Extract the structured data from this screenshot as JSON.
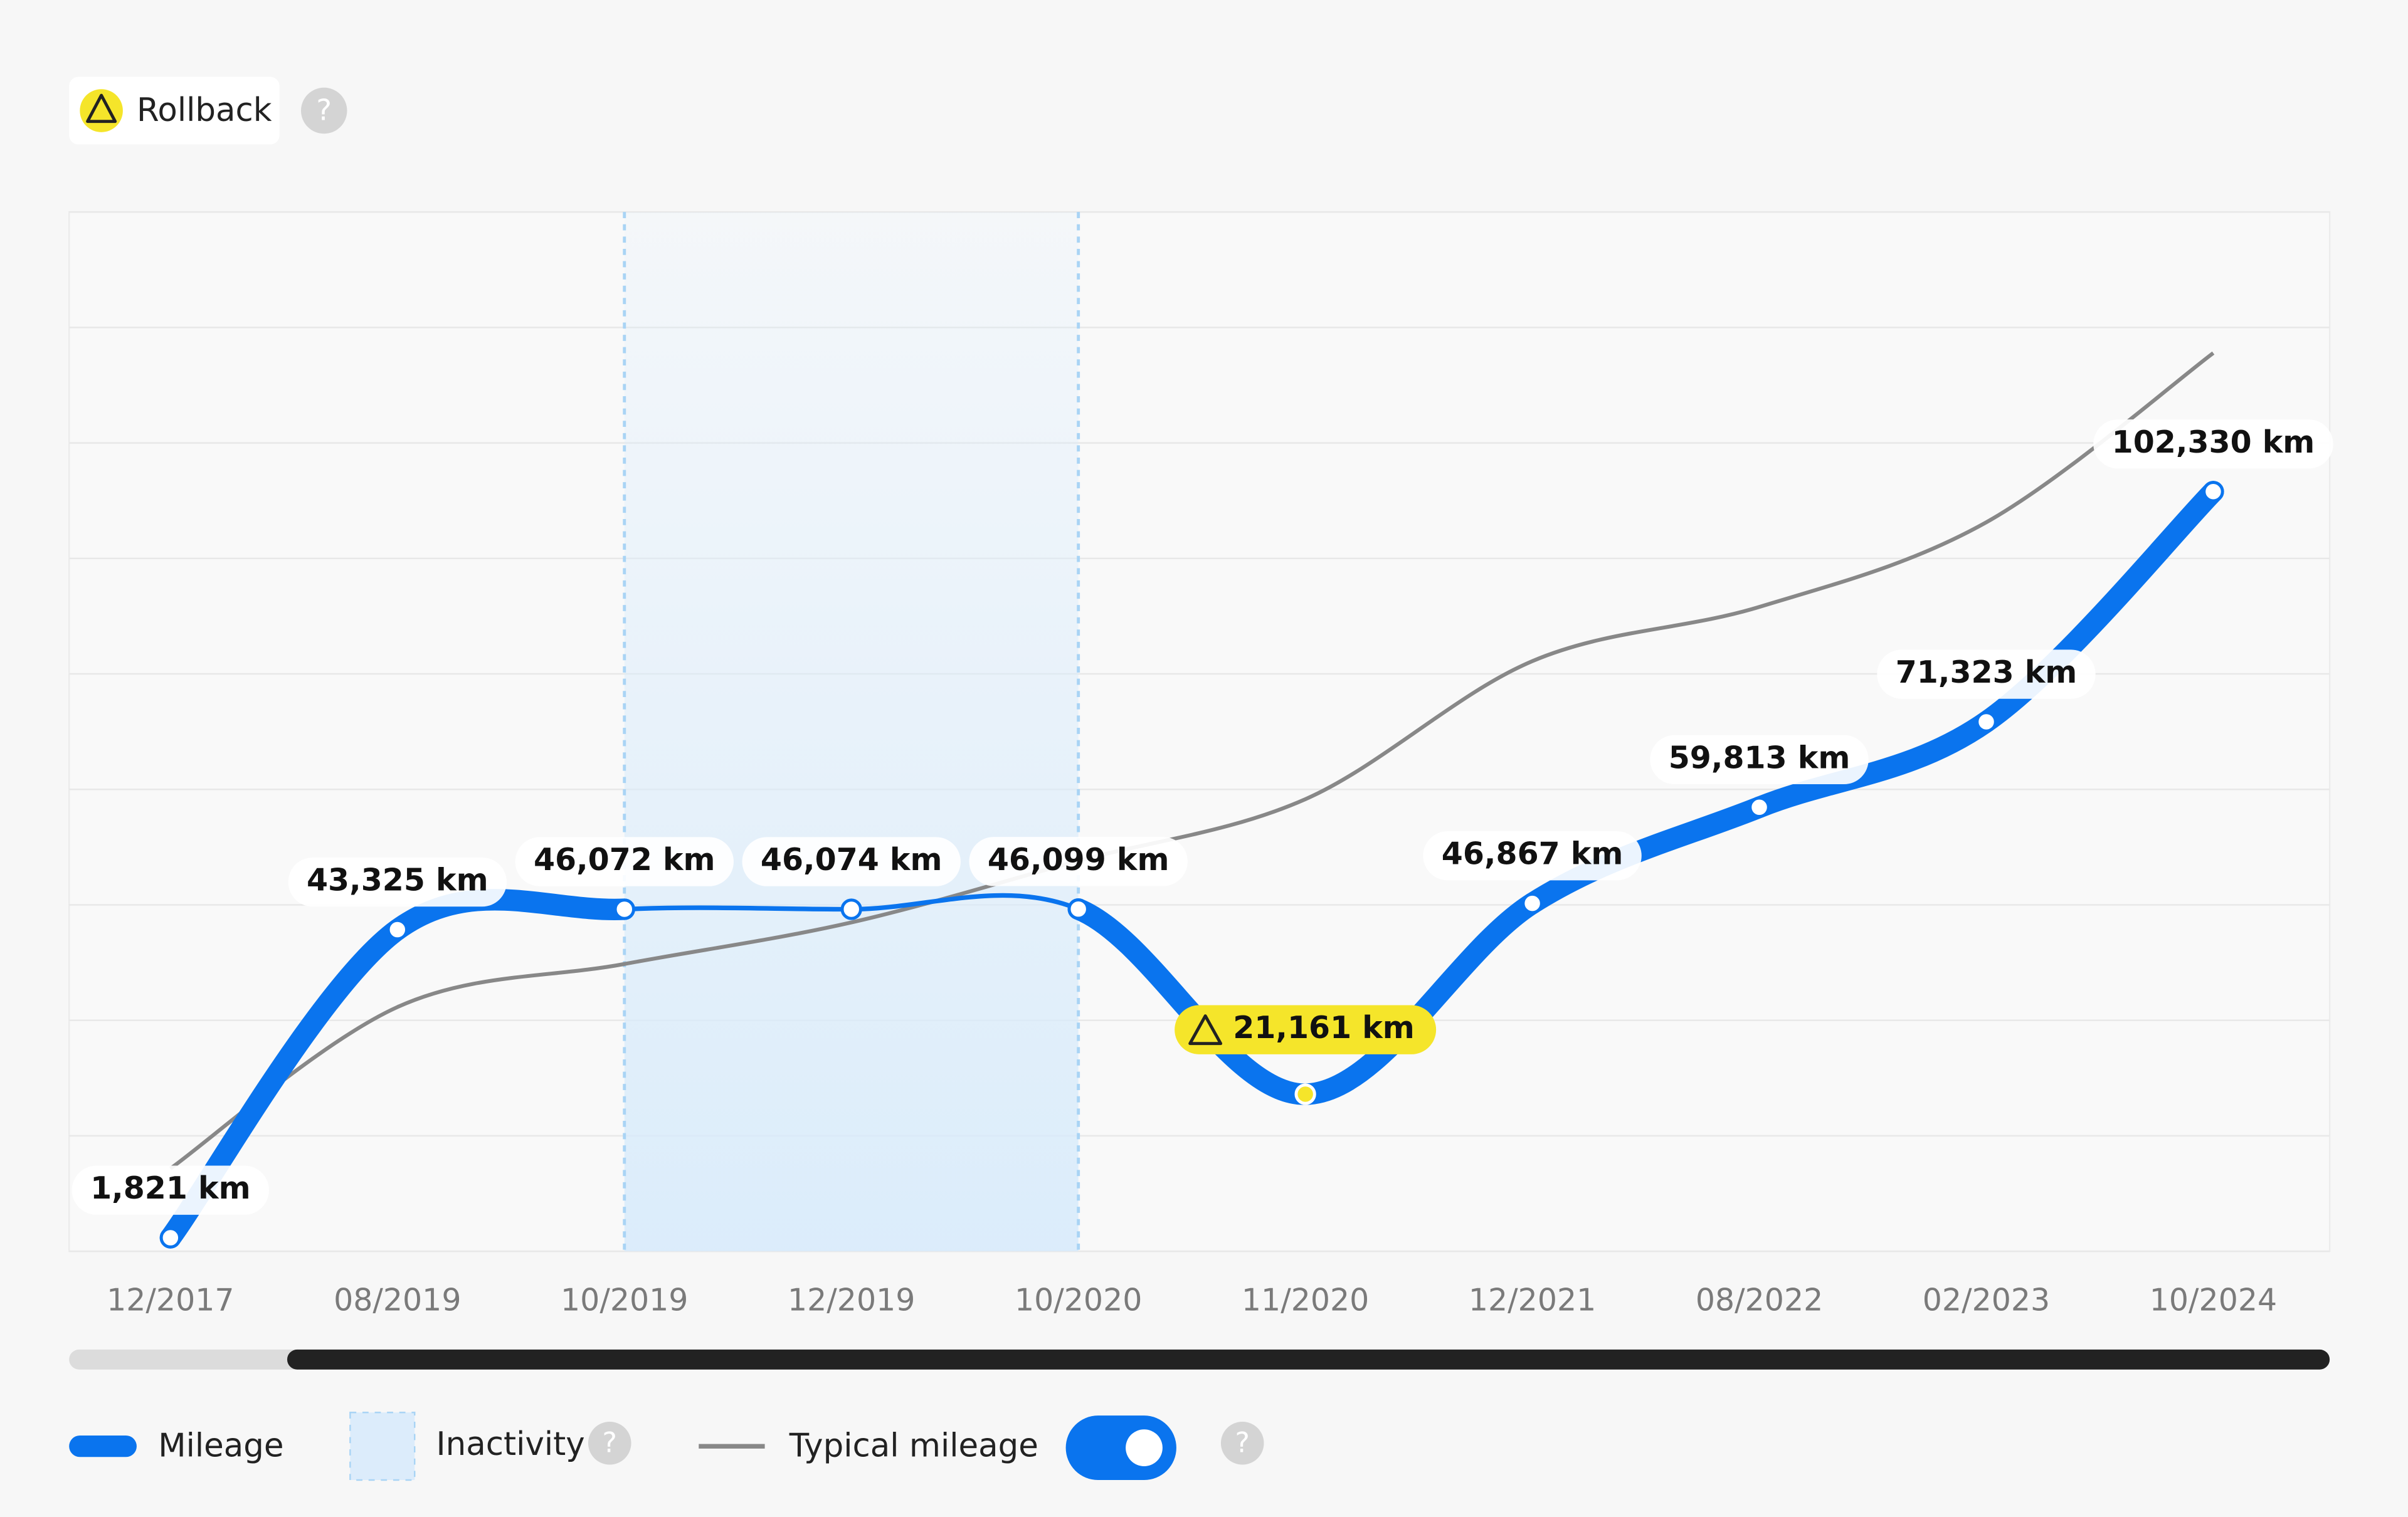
{
  "header": {
    "badge": "Rollback",
    "help": "?"
  },
  "chart_data": {
    "type": "line",
    "categories": [
      "12/2017",
      "08/2019",
      "10/2019",
      "12/2019",
      "10/2020",
      "11/2020",
      "12/2021",
      "08/2022",
      "02/2023",
      "10/2024"
    ],
    "series": [
      {
        "name": "Mileage",
        "color": "#0a74ee",
        "values": [
          1821,
          43325,
          46072,
          46074,
          46099,
          21161,
          46867,
          59813,
          71323,
          102330
        ],
        "value_labels": [
          "1,821 km",
          "43,325 km",
          "46,072 km",
          "46,074 km",
          "46,099 km",
          "21,161 km",
          "46,867 km",
          "59,813 km",
          "71,323 km",
          "102,330 km"
        ]
      },
      {
        "name": "Typical mileage",
        "color": "#888888",
        "values": [
          11150,
          32900,
          38700,
          44300,
          52600,
          60900,
          79500,
          86800,
          98200,
          121000
        ]
      }
    ],
    "ylim": [
      0,
      140000
    ],
    "yticks": [
      0,
      15556,
      31111,
      46667,
      62222,
      77778,
      93333,
      108889,
      124444,
      140000
    ],
    "grid": true,
    "inactivity": {
      "name": "Inactivity",
      "start": 2,
      "end": 4
    },
    "warning_point": 5,
    "typical_visible": true
  }
}
